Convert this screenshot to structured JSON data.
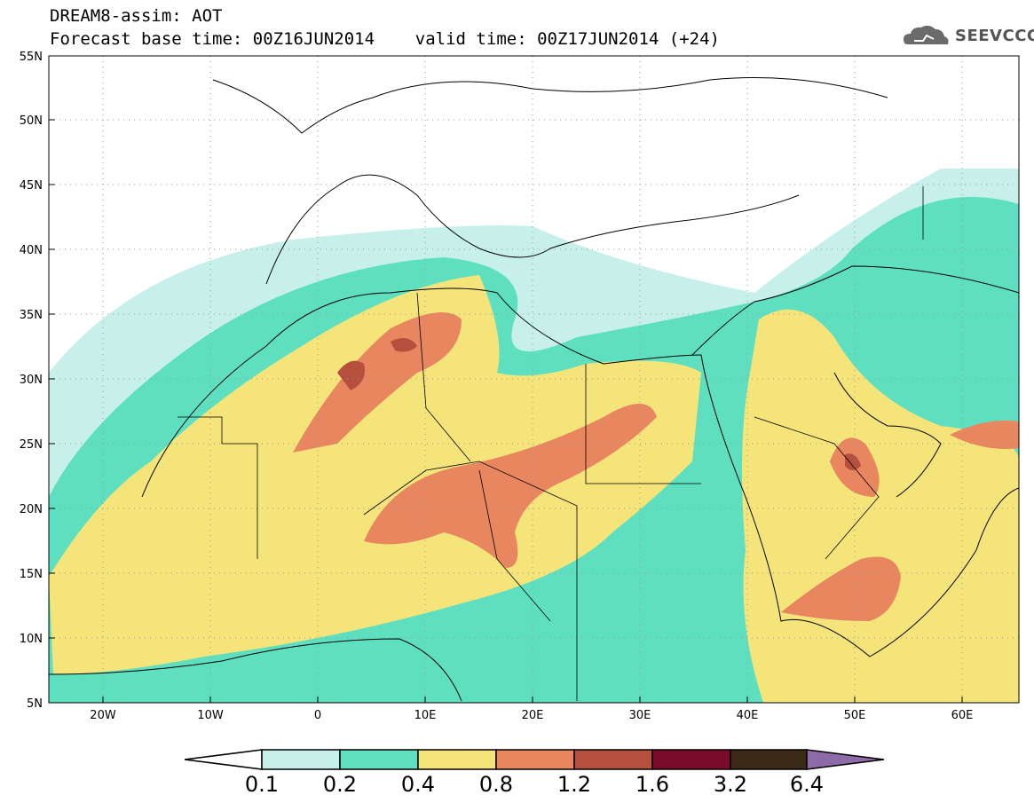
{
  "title": {
    "line1": "DREAM8-assim: AOT",
    "line2": "Forecast base time: 00Z16JUN2014    valid time: 00Z17JUN2014 (+24)"
  },
  "logo": {
    "text": "SEEVCCC",
    "icon": "cloud-icon"
  },
  "map": {
    "lon_range": [
      -25,
      65
    ],
    "lat_range": [
      5,
      55
    ],
    "lat_labels": [
      "55N",
      "50N",
      "45N",
      "40N",
      "35N",
      "30N",
      "25N",
      "20N",
      "15N",
      "10N",
      "5N"
    ],
    "lon_labels": [
      "20W",
      "10W",
      "0",
      "10E",
      "20E",
      "30E",
      "40E",
      "50E",
      "60E"
    ]
  },
  "colorbar": {
    "labels": [
      "0.1",
      "0.2",
      "0.4",
      "0.8",
      "1.2",
      "1.6",
      "3.2",
      "6.4"
    ],
    "colors": [
      "#ffffff",
      "#c8f0eb",
      "#5ee0c0",
      "#f5e479",
      "#e8865f",
      "#b5503e",
      "#7a0b2b",
      "#3b2a16",
      "#8e6aa7"
    ]
  }
}
